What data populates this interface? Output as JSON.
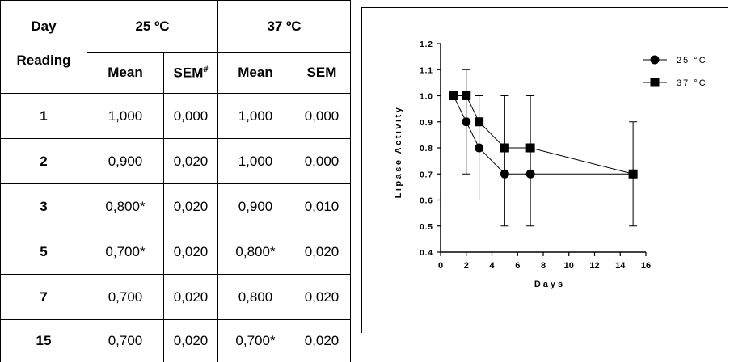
{
  "table": {
    "header_day": "Day",
    "header_reading": "Reading",
    "group_25": "25 ºC",
    "group_37": "37 ºC",
    "col_mean": "Mean",
    "col_sem_25": "SEM",
    "col_sem_25_sup": "#",
    "col_sem_37": "SEM",
    "rows": [
      {
        "day": "1",
        "mean25": "1,000",
        "sem25": "0,000",
        "mean37": "1,000",
        "sem37": "0,000"
      },
      {
        "day": "2",
        "mean25": "0,900",
        "sem25": "0,020",
        "mean37": "1,000",
        "sem37": "0,000"
      },
      {
        "day": "3",
        "mean25": "0,800*",
        "sem25": "0,020",
        "mean37": "0,900",
        "sem37": "0,010"
      },
      {
        "day": "5",
        "mean25": "0,700*",
        "sem25": "0,020",
        "mean37": "0,800*",
        "sem37": "0,020"
      },
      {
        "day": "7",
        "mean25": "0,700",
        "sem25": "0,020",
        "mean37": "0,800",
        "sem37": "0,020"
      },
      {
        "day": "15",
        "mean25": "0,700",
        "sem25": "0,020",
        "mean37": "0,700*",
        "sem37": "0,020"
      }
    ]
  },
  "chart_data": {
    "type": "line",
    "title": "",
    "xlabel": "Days",
    "ylabel": "Lipase Activity",
    "xlim": [
      0,
      16
    ],
    "ylim": [
      0.4,
      1.2
    ],
    "xticks": [
      "0",
      "2",
      "4",
      "6",
      "8",
      "10",
      "12",
      "14",
      "16"
    ],
    "yticks": [
      "0.4",
      "0.5",
      "0.6",
      "0.7",
      "0.8",
      "0.9",
      "1.0",
      "1.1",
      "1.2"
    ],
    "grid": false,
    "legend_position": "top-right",
    "series": [
      {
        "name": "25 °C",
        "marker": "circle",
        "x": [
          1,
          2,
          3,
          5,
          7,
          15
        ],
        "y": [
          1.0,
          0.9,
          0.8,
          0.7,
          0.7,
          0.7
        ],
        "err_low": [
          1.0,
          0.7,
          0.6,
          0.5,
          0.5,
          0.5
        ],
        "err_high": [
          1.0,
          1.1,
          1.0,
          1.0,
          1.0,
          0.9
        ]
      },
      {
        "name": "37 °C",
        "marker": "square",
        "x": [
          1,
          2,
          3,
          5,
          7,
          15
        ],
        "y": [
          1.0,
          1.0,
          0.9,
          0.8,
          0.8,
          0.7
        ],
        "err_low": [
          1.0,
          1.0,
          0.9,
          0.8,
          0.8,
          0.7
        ],
        "err_high": [
          1.0,
          1.0,
          0.9,
          0.8,
          0.8,
          0.7
        ]
      }
    ]
  }
}
